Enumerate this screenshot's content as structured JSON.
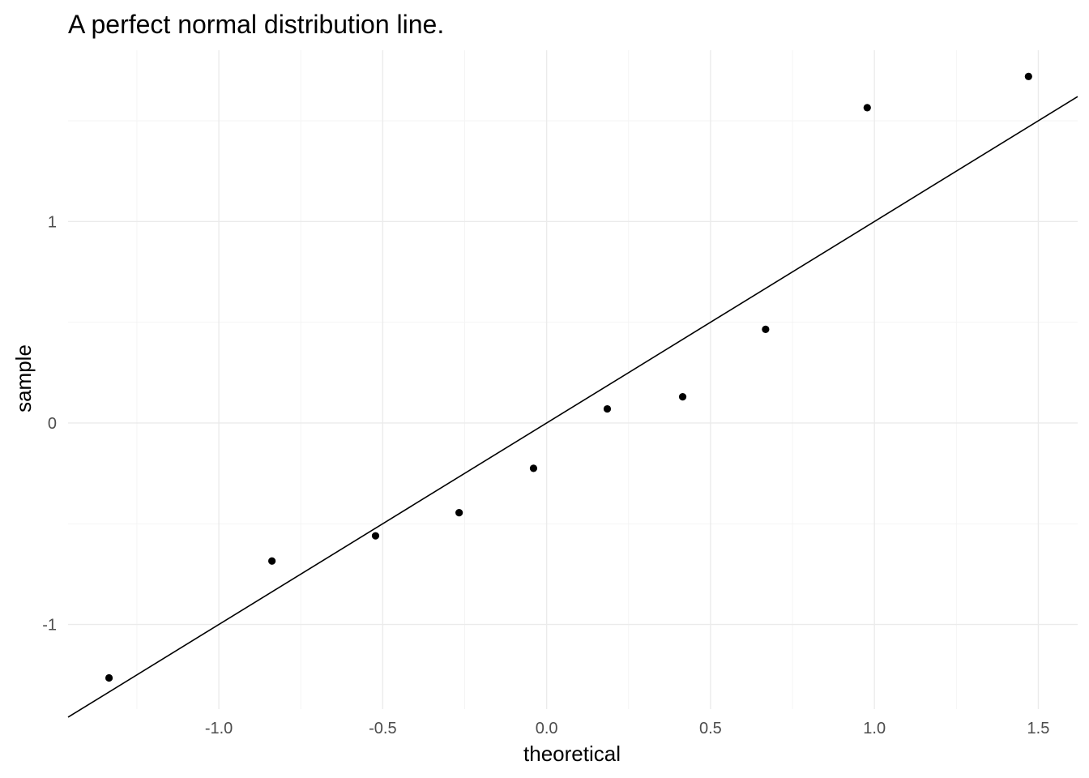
{
  "chart_data": {
    "type": "scatter",
    "title": "A perfect normal distribution line.",
    "xlabel": "theoretical",
    "ylabel": "sample",
    "xlim": [
      -1.46,
      1.62
    ],
    "ylim": [
      -1.42,
      1.85
    ],
    "x_ticks": [
      -1.0,
      -0.5,
      0.0,
      0.5,
      1.0,
      1.5
    ],
    "x_tick_labels": [
      "-1.0",
      "-0.5",
      "0.0",
      "0.5",
      "1.0",
      "1.5"
    ],
    "y_ticks": [
      -1,
      0,
      1
    ],
    "y_tick_labels": [
      "-1",
      "0",
      "1"
    ],
    "grid": true,
    "points": {
      "x": [
        -1.335,
        -0.838,
        -0.522,
        -0.267,
        -0.04,
        0.185,
        0.415,
        0.668,
        0.978,
        1.47
      ],
      "y": [
        -1.265,
        -0.685,
        -0.56,
        -0.445,
        -0.225,
        0.07,
        0.13,
        0.465,
        1.565,
        1.72
      ]
    },
    "reference_line": {
      "slope": 1.0,
      "intercept": 0.0
    },
    "colors": {
      "points": "#000000",
      "line": "#000000",
      "grid": "#ebebeb"
    }
  }
}
